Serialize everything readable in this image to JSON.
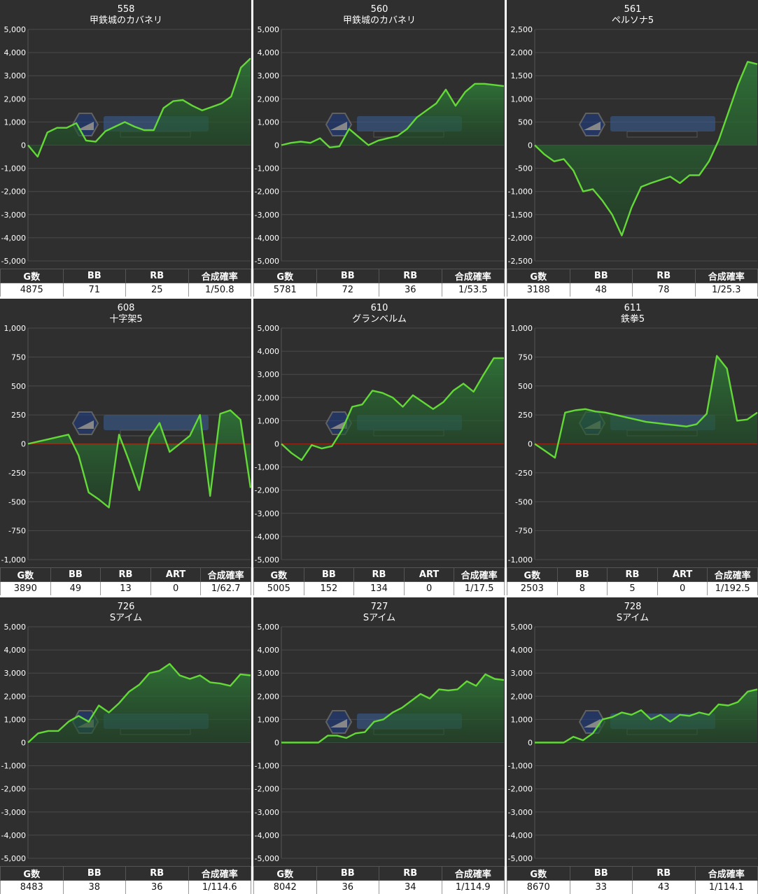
{
  "charts": [
    {
      "machine_no": "558",
      "model": "甲鉄城のカバネリ",
      "yticks": [
        "5,000",
        "4,000",
        "3,000",
        "2,000",
        "1,000",
        "0",
        "-1,000",
        "-2,000",
        "-3,000",
        "-4,000",
        "-5,000"
      ],
      "headers": [
        "G数",
        "BB",
        "RB",
        "合成確率"
      ],
      "stats": [
        "4875",
        "71",
        "25",
        "1/50.8"
      ]
    },
    {
      "machine_no": "560",
      "model": "甲鉄城のカバネリ",
      "yticks": [
        "5,000",
        "4,000",
        "3,000",
        "2,000",
        "1,000",
        "0",
        "-1,000",
        "-2,000",
        "-3,000",
        "-4,000",
        "-5,000"
      ],
      "headers": [
        "G数",
        "BB",
        "RB",
        "合成確率"
      ],
      "stats": [
        "5781",
        "72",
        "36",
        "1/53.5"
      ]
    },
    {
      "machine_no": "561",
      "model": "ペルソナ5",
      "yticks": [
        "2,500",
        "2,000",
        "1,500",
        "1,000",
        "500",
        "0",
        "-500",
        "-1,000",
        "-1,500",
        "-2,000",
        "-2,500"
      ],
      "headers": [
        "G数",
        "BB",
        "RB",
        "合成確率"
      ],
      "stats": [
        "3188",
        "48",
        "78",
        "1/25.3"
      ]
    },
    {
      "machine_no": "608",
      "model": "十字架5",
      "yticks": [
        "1,000",
        "750",
        "500",
        "250",
        "0",
        "-250",
        "-500",
        "-750",
        "-1,000"
      ],
      "headers": [
        "G数",
        "BB",
        "RB",
        "ART",
        "合成確率"
      ],
      "stats": [
        "3890",
        "49",
        "13",
        "0",
        "1/62.7"
      ]
    },
    {
      "machine_no": "610",
      "model": "グランベルム",
      "yticks": [
        "5,000",
        "4,000",
        "3,000",
        "2,000",
        "1,000",
        "0",
        "-1,000",
        "-2,000",
        "-3,000",
        "-4,000",
        "-5,000"
      ],
      "headers": [
        "G数",
        "BB",
        "RB",
        "ART",
        "合成確率"
      ],
      "stats": [
        "5005",
        "152",
        "134",
        "0",
        "1/17.5"
      ]
    },
    {
      "machine_no": "611",
      "model": "鉄拳5",
      "yticks": [
        "1,000",
        "750",
        "500",
        "250",
        "0",
        "-250",
        "-500",
        "-750",
        "-1,000"
      ],
      "headers": [
        "G数",
        "BB",
        "RB",
        "ART",
        "合成確率"
      ],
      "stats": [
        "2503",
        "8",
        "5",
        "0",
        "1/192.5"
      ]
    },
    {
      "machine_no": "726",
      "model": "Sアイム",
      "yticks": [
        "5,000",
        "4,000",
        "3,000",
        "2,000",
        "1,000",
        "0",
        "-1,000",
        "-2,000",
        "-3,000",
        "-4,000",
        "-5,000"
      ],
      "headers": [
        "G数",
        "BB",
        "RB",
        "合成確率"
      ],
      "stats": [
        "8483",
        "38",
        "36",
        "1/114.6"
      ]
    },
    {
      "machine_no": "727",
      "model": "Sアイム",
      "yticks": [
        "5,000",
        "4,000",
        "3,000",
        "2,000",
        "1,000",
        "0",
        "-1,000",
        "-2,000",
        "-3,000",
        "-4,000",
        "-5,000"
      ],
      "headers": [
        "G数",
        "BB",
        "RB",
        "合成確率"
      ],
      "stats": [
        "8042",
        "36",
        "34",
        "1/114.9"
      ]
    },
    {
      "machine_no": "728",
      "model": "Sアイム",
      "yticks": [
        "5,000",
        "4,000",
        "3,000",
        "2,000",
        "1,000",
        "0",
        "-1,000",
        "-2,000",
        "-3,000",
        "-4,000",
        "-5,000"
      ],
      "headers": [
        "G数",
        "BB",
        "RB",
        "合成確率"
      ],
      "stats": [
        "8670",
        "33",
        "43",
        "1/114.1"
      ]
    }
  ],
  "chart_data": [
    {
      "type": "area",
      "title": "558",
      "subtitle": "甲鉄城のカバネリ",
      "ylim": [
        -5000,
        5000
      ],
      "grid": true,
      "y": [
        0,
        -500,
        550,
        750,
        750,
        950,
        200,
        150,
        600,
        800,
        1000,
        800,
        650,
        650,
        1600,
        1900,
        1950,
        1700,
        1500,
        1650,
        1800,
        2100,
        3350,
        3750
      ]
    },
    {
      "type": "area",
      "title": "560",
      "subtitle": "甲鉄城のカバネリ",
      "ylim": [
        -5000,
        5000
      ],
      "grid": true,
      "y": [
        0,
        100,
        150,
        100,
        300,
        -100,
        -50,
        700,
        350,
        0,
        200,
        300,
        400,
        700,
        1200,
        1500,
        1800,
        2400,
        1700,
        2300,
        2650,
        2650,
        2600,
        2550
      ]
    },
    {
      "type": "area",
      "title": "561",
      "subtitle": "ペルソナ5",
      "ylim": [
        -2500,
        2500
      ],
      "grid": true,
      "y": [
        0,
        -200,
        -350,
        -300,
        -550,
        -1000,
        -950,
        -1200,
        -1500,
        -1950,
        -1350,
        -900,
        -820,
        -750,
        -680,
        -820,
        -650,
        -650,
        -350,
        100,
        700,
        1300,
        1800,
        1750
      ]
    },
    {
      "type": "area",
      "title": "608",
      "subtitle": "十字架5",
      "ylim": [
        -1000,
        1000
      ],
      "grid": true,
      "y": [
        0,
        20,
        40,
        60,
        80,
        -100,
        -420,
        -480,
        -550,
        80,
        -150,
        -400,
        50,
        180,
        -70,
        0,
        70,
        250,
        -450,
        260,
        290,
        210,
        -380
      ]
    },
    {
      "type": "area",
      "title": "610",
      "subtitle": "グランベルム",
      "ylim": [
        -5000,
        5000
      ],
      "grid": true,
      "y": [
        0,
        -400,
        -700,
        -50,
        -200,
        -100,
        600,
        1600,
        1700,
        2300,
        2200,
        2000,
        1600,
        2100,
        1800,
        1500,
        1800,
        2300,
        2600,
        2250,
        3000,
        3700,
        3700
      ]
    },
    {
      "type": "area",
      "title": "611",
      "subtitle": "鉄拳5",
      "ylim": [
        -1000,
        1000
      ],
      "grid": true,
      "y": [
        0,
        -60,
        -120,
        270,
        290,
        300,
        280,
        270,
        250,
        230,
        210,
        190,
        180,
        170,
        160,
        150,
        170,
        260,
        760,
        650,
        200,
        210,
        270
      ]
    },
    {
      "type": "area",
      "title": "726",
      "subtitle": "Sアイム",
      "ylim": [
        -5000,
        5000
      ],
      "grid": true,
      "y": [
        0,
        400,
        500,
        500,
        900,
        1150,
        900,
        1600,
        1300,
        1700,
        2200,
        2500,
        3000,
        3100,
        3400,
        2900,
        2750,
        2900,
        2600,
        2550,
        2450,
        2950,
        2900
      ]
    },
    {
      "type": "area",
      "title": "727",
      "subtitle": "Sアイム",
      "ylim": [
        -5000,
        5000
      ],
      "grid": true,
      "y": [
        0,
        0,
        0,
        0,
        0,
        300,
        300,
        200,
        400,
        450,
        900,
        1000,
        1300,
        1500,
        1800,
        2100,
        1900,
        2300,
        2250,
        2300,
        2650,
        2450,
        2950,
        2750,
        2700
      ]
    },
    {
      "type": "area",
      "title": "728",
      "subtitle": "Sアイム",
      "ylim": [
        -5000,
        5000
      ],
      "grid": true,
      "y": [
        0,
        0,
        0,
        0,
        250,
        100,
        400,
        1000,
        1100,
        1300,
        1200,
        1400,
        1000,
        1200,
        900,
        1200,
        1150,
        1300,
        1200,
        1650,
        1600,
        1750,
        2200,
        2300
      ]
    }
  ]
}
